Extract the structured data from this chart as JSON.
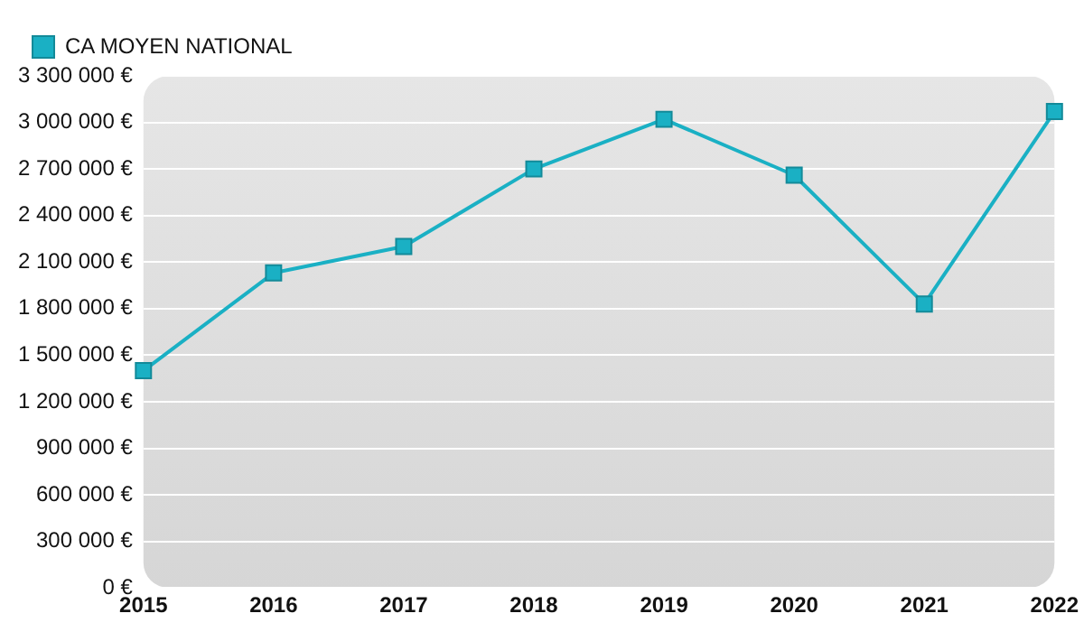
{
  "chart_data": {
    "type": "line",
    "x": [
      2015,
      2016,
      2017,
      2018,
      2019,
      2020,
      2021,
      2022
    ],
    "series": [
      {
        "name": "CA MOYEN NATIONAL",
        "color": "#1ab0c4",
        "values": [
          1400000,
          2030000,
          2200000,
          2700000,
          3020000,
          2660000,
          1830000,
          3070000
        ]
      }
    ],
    "xlim": [
      2015,
      2022
    ],
    "xticks": [
      2015,
      2016,
      2017,
      2018,
      2019,
      2020,
      2021,
      2022
    ],
    "ylim": [
      0,
      3300000
    ],
    "yticks": [
      {
        "value": 0,
        "label": "0 €"
      },
      {
        "value": 300000,
        "label": "300 000 €"
      },
      {
        "value": 600000,
        "label": "600 000 €"
      },
      {
        "value": 900000,
        "label": "900 000 €"
      },
      {
        "value": 1200000,
        "label": "1 200 000 €"
      },
      {
        "value": 1500000,
        "label": "1 500 000 €"
      },
      {
        "value": 1800000,
        "label": "1 800 000 €"
      },
      {
        "value": 2100000,
        "label": "2 100 000 €"
      },
      {
        "value": 2400000,
        "label": "2 400 000 €"
      },
      {
        "value": 2700000,
        "label": "2 700 000 €"
      },
      {
        "value": 3000000,
        "label": "3 000 000 €"
      },
      {
        "value": 3300000,
        "label": "3 300 000 €"
      }
    ],
    "grid": "y",
    "legend": "top left",
    "marker": "square",
    "line_style": "solid"
  }
}
